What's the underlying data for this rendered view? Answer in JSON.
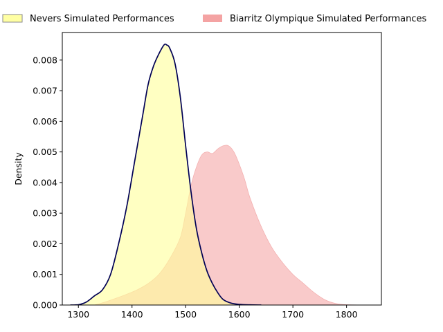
{
  "chart_data": {
    "type": "area",
    "title": "",
    "xlabel": "",
    "ylabel": "Density",
    "xlim": [
      1270,
      1865
    ],
    "ylim": [
      0,
      0.0089
    ],
    "x_ticks": [
      1300,
      1400,
      1500,
      1600,
      1700,
      1800
    ],
    "y_ticks": [
      0.0,
      0.001,
      0.002,
      0.003,
      0.004,
      0.005,
      0.006,
      0.007,
      0.008
    ],
    "y_tick_labels": [
      "0.000",
      "0.001",
      "0.002",
      "0.003",
      "0.004",
      "0.005",
      "0.006",
      "0.007",
      "0.008"
    ],
    "grid": false,
    "legend_position": "top",
    "series": [
      {
        "name": "Nevers Simulated Performances",
        "fill": "#ffff99",
        "fill_opacity": 0.6,
        "line_color": "#000055",
        "x": [
          1285,
          1300,
          1315,
          1330,
          1345,
          1360,
          1375,
          1390,
          1405,
          1420,
          1430,
          1440,
          1450,
          1460,
          1465,
          1470,
          1480,
          1490,
          1500,
          1510,
          1520,
          1530,
          1540,
          1550,
          1560,
          1570,
          1585,
          1600,
          1620,
          1641
        ],
        "y": [
          0.0,
          1e-05,
          0.0001,
          0.0003,
          0.0005,
          0.001,
          0.002,
          0.0032,
          0.0047,
          0.0062,
          0.0072,
          0.0078,
          0.0082,
          0.0085,
          0.00849,
          0.0084,
          0.0079,
          0.0068,
          0.0052,
          0.0037,
          0.0025,
          0.0017,
          0.0011,
          0.0007,
          0.0004,
          0.00018,
          6e-05,
          2e-05,
          5e-06,
          0.0
        ]
      },
      {
        "name": "Biarritz Olympique Simulated Performances",
        "fill": "#f08080",
        "fill_opacity": 0.42,
        "line_color": "#f3b0b0",
        "x": [
          1330,
          1350,
          1370,
          1390,
          1410,
          1430,
          1450,
          1470,
          1490,
          1500,
          1510,
          1520,
          1530,
          1540,
          1550,
          1560,
          1570,
          1580,
          1590,
          1600,
          1610,
          1620,
          1640,
          1660,
          1680,
          1700,
          1720,
          1740,
          1760,
          1780,
          1800,
          1843
        ],
        "y": [
          0.0,
          0.0001,
          0.00022,
          0.00035,
          0.0005,
          0.0007,
          0.001,
          0.0015,
          0.0022,
          0.003,
          0.0039,
          0.0045,
          0.0049,
          0.005,
          0.00495,
          0.0051,
          0.0052,
          0.0052,
          0.005,
          0.0046,
          0.0041,
          0.0035,
          0.0026,
          0.0019,
          0.0014,
          0.001,
          0.0007,
          0.0004,
          0.00017,
          5e-05,
          1e-05,
          0.0
        ]
      }
    ]
  }
}
